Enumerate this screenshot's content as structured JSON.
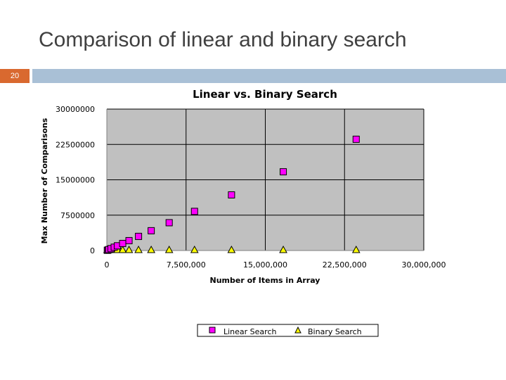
{
  "slide": {
    "title": "Comparison of linear and binary search",
    "page_number": "20",
    "colors": {
      "number_box": "#d9692f",
      "header_bar": "#a9c0d6"
    }
  },
  "chart_data": {
    "type": "scatter",
    "title": "Linear vs. Binary Search",
    "xlabel": "Number of Items in Array",
    "ylabel": "Max Number of Comparisons",
    "xlim": [
      0,
      30000000
    ],
    "ylim": [
      0,
      30000000
    ],
    "x_ticks": [
      0,
      7500000,
      15000000,
      22500000,
      30000000
    ],
    "x_tick_labels": [
      "0",
      "7,500,000",
      "15,000,000",
      "22,500,000",
      "30,000,000"
    ],
    "y_ticks": [
      0,
      7500000,
      15000000,
      22500000,
      30000000
    ],
    "y_tick_labels": [
      "0",
      "7500000",
      "15000000",
      "22500000",
      "30000000"
    ],
    "grid": true,
    "plot_background": "#c0c0c0",
    "legend_position": "bottom",
    "series": [
      {
        "name": "Linear Search",
        "marker": "square",
        "color": "#ff00ff",
        "x": [
          50000,
          100000,
          200000,
          400000,
          700000,
          1000000,
          1500000,
          2100000,
          3000000,
          4200000,
          5900000,
          8300000,
          11800000,
          16700000,
          23600000
        ],
        "y": [
          50000,
          100000,
          200000,
          400000,
          700000,
          1000000,
          1500000,
          2100000,
          3000000,
          4200000,
          5900000,
          8300000,
          11800000,
          16700000,
          23600000
        ]
      },
      {
        "name": "Binary Search",
        "marker": "triangle",
        "color": "#ffff00",
        "x": [
          50000,
          100000,
          200000,
          400000,
          700000,
          1000000,
          1500000,
          2100000,
          3000000,
          4200000,
          5900000,
          8300000,
          11800000,
          16700000,
          23600000
        ],
        "y": [
          16,
          17,
          18,
          19,
          20,
          20,
          21,
          21,
          22,
          22,
          23,
          23,
          24,
          24,
          25
        ]
      }
    ]
  }
}
